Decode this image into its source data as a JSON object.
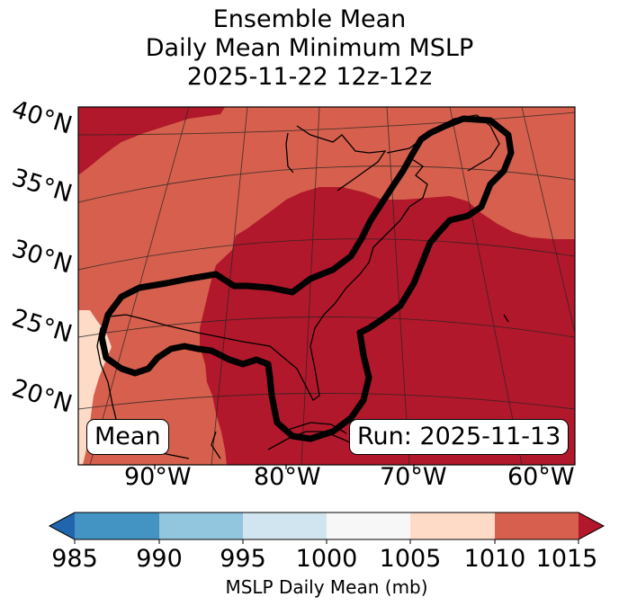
{
  "title": {
    "line1": "Ensemble Mean",
    "line2": "Daily Mean Minimum MSLP",
    "line3": "2025-11-22 12z-12z"
  },
  "map": {
    "lat_labels": [
      "40°N",
      "35°N",
      "30°N",
      "25°N",
      "20°N"
    ],
    "lon_labels": [
      "90°W",
      "80°W",
      "70°W",
      "60°W"
    ],
    "mean_box": "Mean",
    "run_box": "Run: 2025-11-13",
    "colors": {
      "band_1010_1015": "#d6604d",
      "band_over_1015": "#b2182b",
      "band_1005_1010": "#fddbc7",
      "contour": "#000000"
    }
  },
  "colorbar": {
    "ticks": [
      "985",
      "990",
      "995",
      "1000",
      "1005",
      "1010",
      "1015"
    ],
    "colors": [
      "#2166ac",
      "#4393c3",
      "#92c5de",
      "#d1e5f0",
      "#f7f7f7",
      "#fddbc7",
      "#d6604d",
      "#b2182b"
    ],
    "label": "MSLP Daily Mean (mb)"
  }
}
